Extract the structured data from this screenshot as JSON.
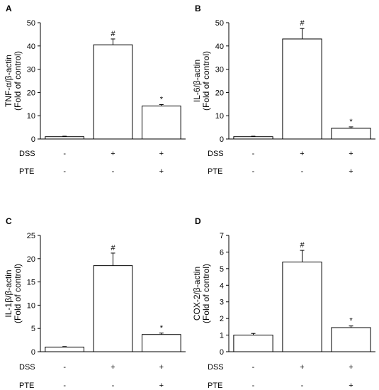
{
  "chart_data": [
    {
      "type": "bar",
      "panel": "A",
      "ylabel_line1": "TNF-α/β-actin",
      "ylabel_line2": "(Fold of control)",
      "ylim": [
        0,
        50
      ],
      "yticks": [
        0,
        10,
        20,
        30,
        40,
        50
      ],
      "values": [
        1.0,
        40.5,
        14.2
      ],
      "errors": [
        0.2,
        2.5,
        0.6
      ],
      "annotations": [
        "",
        "#",
        "*"
      ],
      "conditions": [
        {
          "name": "DSS",
          "marks": [
            "-",
            "+",
            "+"
          ]
        },
        {
          "name": "PTE",
          "marks": [
            "-",
            "-",
            "+"
          ]
        }
      ]
    },
    {
      "type": "bar",
      "panel": "B",
      "ylabel_line1": "IL-6/β-actin",
      "ylabel_line2": "(Fold of control)",
      "ylim": [
        0,
        50
      ],
      "yticks": [
        0,
        10,
        20,
        30,
        40,
        50
      ],
      "values": [
        1.0,
        43.0,
        4.6
      ],
      "errors": [
        0.2,
        4.5,
        0.6
      ],
      "annotations": [
        "",
        "#",
        "*"
      ],
      "conditions": [
        {
          "name": "DSS",
          "marks": [
            "-",
            "+",
            "+"
          ]
        },
        {
          "name": "PTE",
          "marks": [
            "-",
            "-",
            "+"
          ]
        }
      ]
    },
    {
      "type": "bar",
      "panel": "C",
      "ylabel_line1": "IL-1β/β-actin",
      "ylabel_line2": "(Fold of control)",
      "ylim": [
        0,
        25
      ],
      "yticks": [
        0,
        5,
        10,
        15,
        20,
        25
      ],
      "values": [
        1.0,
        18.5,
        3.7
      ],
      "errors": [
        0.1,
        2.7,
        0.3
      ],
      "annotations": [
        "",
        "#",
        "*"
      ],
      "conditions": [
        {
          "name": "DSS",
          "marks": [
            "-",
            "+",
            "+"
          ]
        },
        {
          "name": "PTE",
          "marks": [
            "-",
            "-",
            "+"
          ]
        }
      ]
    },
    {
      "type": "bar",
      "panel": "D",
      "ylabel_line1": "COX-2/β-actin",
      "ylabel_line2": "(Fold of control)",
      "ylim": [
        0,
        7
      ],
      "yticks": [
        0,
        1,
        2,
        3,
        4,
        5,
        6,
        7
      ],
      "values": [
        1.0,
        5.4,
        1.45
      ],
      "errors": [
        0.1,
        0.7,
        0.1
      ],
      "annotations": [
        "",
        "#",
        "*"
      ],
      "conditions": [
        {
          "name": "DSS",
          "marks": [
            "-",
            "+",
            "+"
          ]
        },
        {
          "name": "PTE",
          "marks": [
            "-",
            "-",
            "+"
          ]
        }
      ]
    }
  ]
}
